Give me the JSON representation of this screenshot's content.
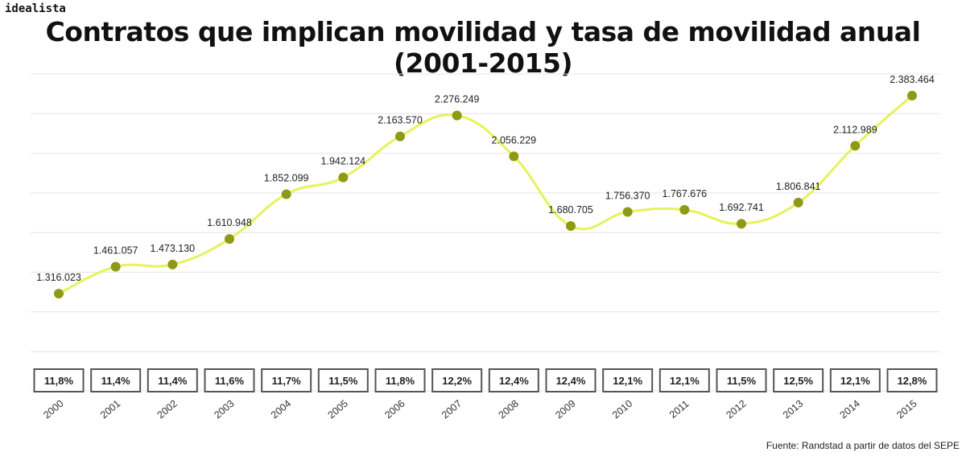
{
  "brand": "idealista",
  "source": "Fuente: Randstad a partir de datos del SEPE",
  "colors": {
    "line": "#e6f35a",
    "marker": "#8e9a15",
    "grid": "#e4e4e4",
    "box_border": "#555555"
  },
  "chart_data": {
    "type": "line",
    "title": "Contratos que implican movilidad y tasa de movilidad anual (2001-2015)",
    "xlabel": "",
    "ylabel": "",
    "ylim": [
      1000000,
      2500000
    ],
    "grid": true,
    "categories": [
      "2000",
      "2001",
      "2002",
      "2003",
      "2004",
      "2005",
      "2006",
      "2007",
      "2008",
      "2009",
      "2010",
      "2011",
      "2012",
      "2013",
      "2014",
      "2015"
    ],
    "series": [
      {
        "name": "Contratos que implican movilidad",
        "values": [
          1316023,
          1461057,
          1473130,
          1610948,
          1852099,
          1942124,
          2163570,
          2276249,
          2056229,
          1680705,
          1756370,
          1767676,
          1692741,
          1806841,
          2112989,
          2383464
        ],
        "labels": [
          "1.316.023",
          "1.461.057",
          "1.473.130",
          "1.610.948",
          "1.852.099",
          "1.942.124",
          "2.163.570",
          "2.276.249",
          "2.056.229",
          "1.680.705",
          "1.756.370",
          "1.767.676",
          "1.692.741",
          "1.806.841",
          "2.112.989",
          "2.383.464"
        ]
      }
    ],
    "rates": [
      "11,8%",
      "11,4%",
      "11,4%",
      "11,6%",
      "11,7%",
      "11,5%",
      "11,8%",
      "12,2%",
      "12,4%",
      "12,4%",
      "12,1%",
      "12,1%",
      "11,5%",
      "12,5%",
      "12,1%",
      "12,8%"
    ]
  }
}
